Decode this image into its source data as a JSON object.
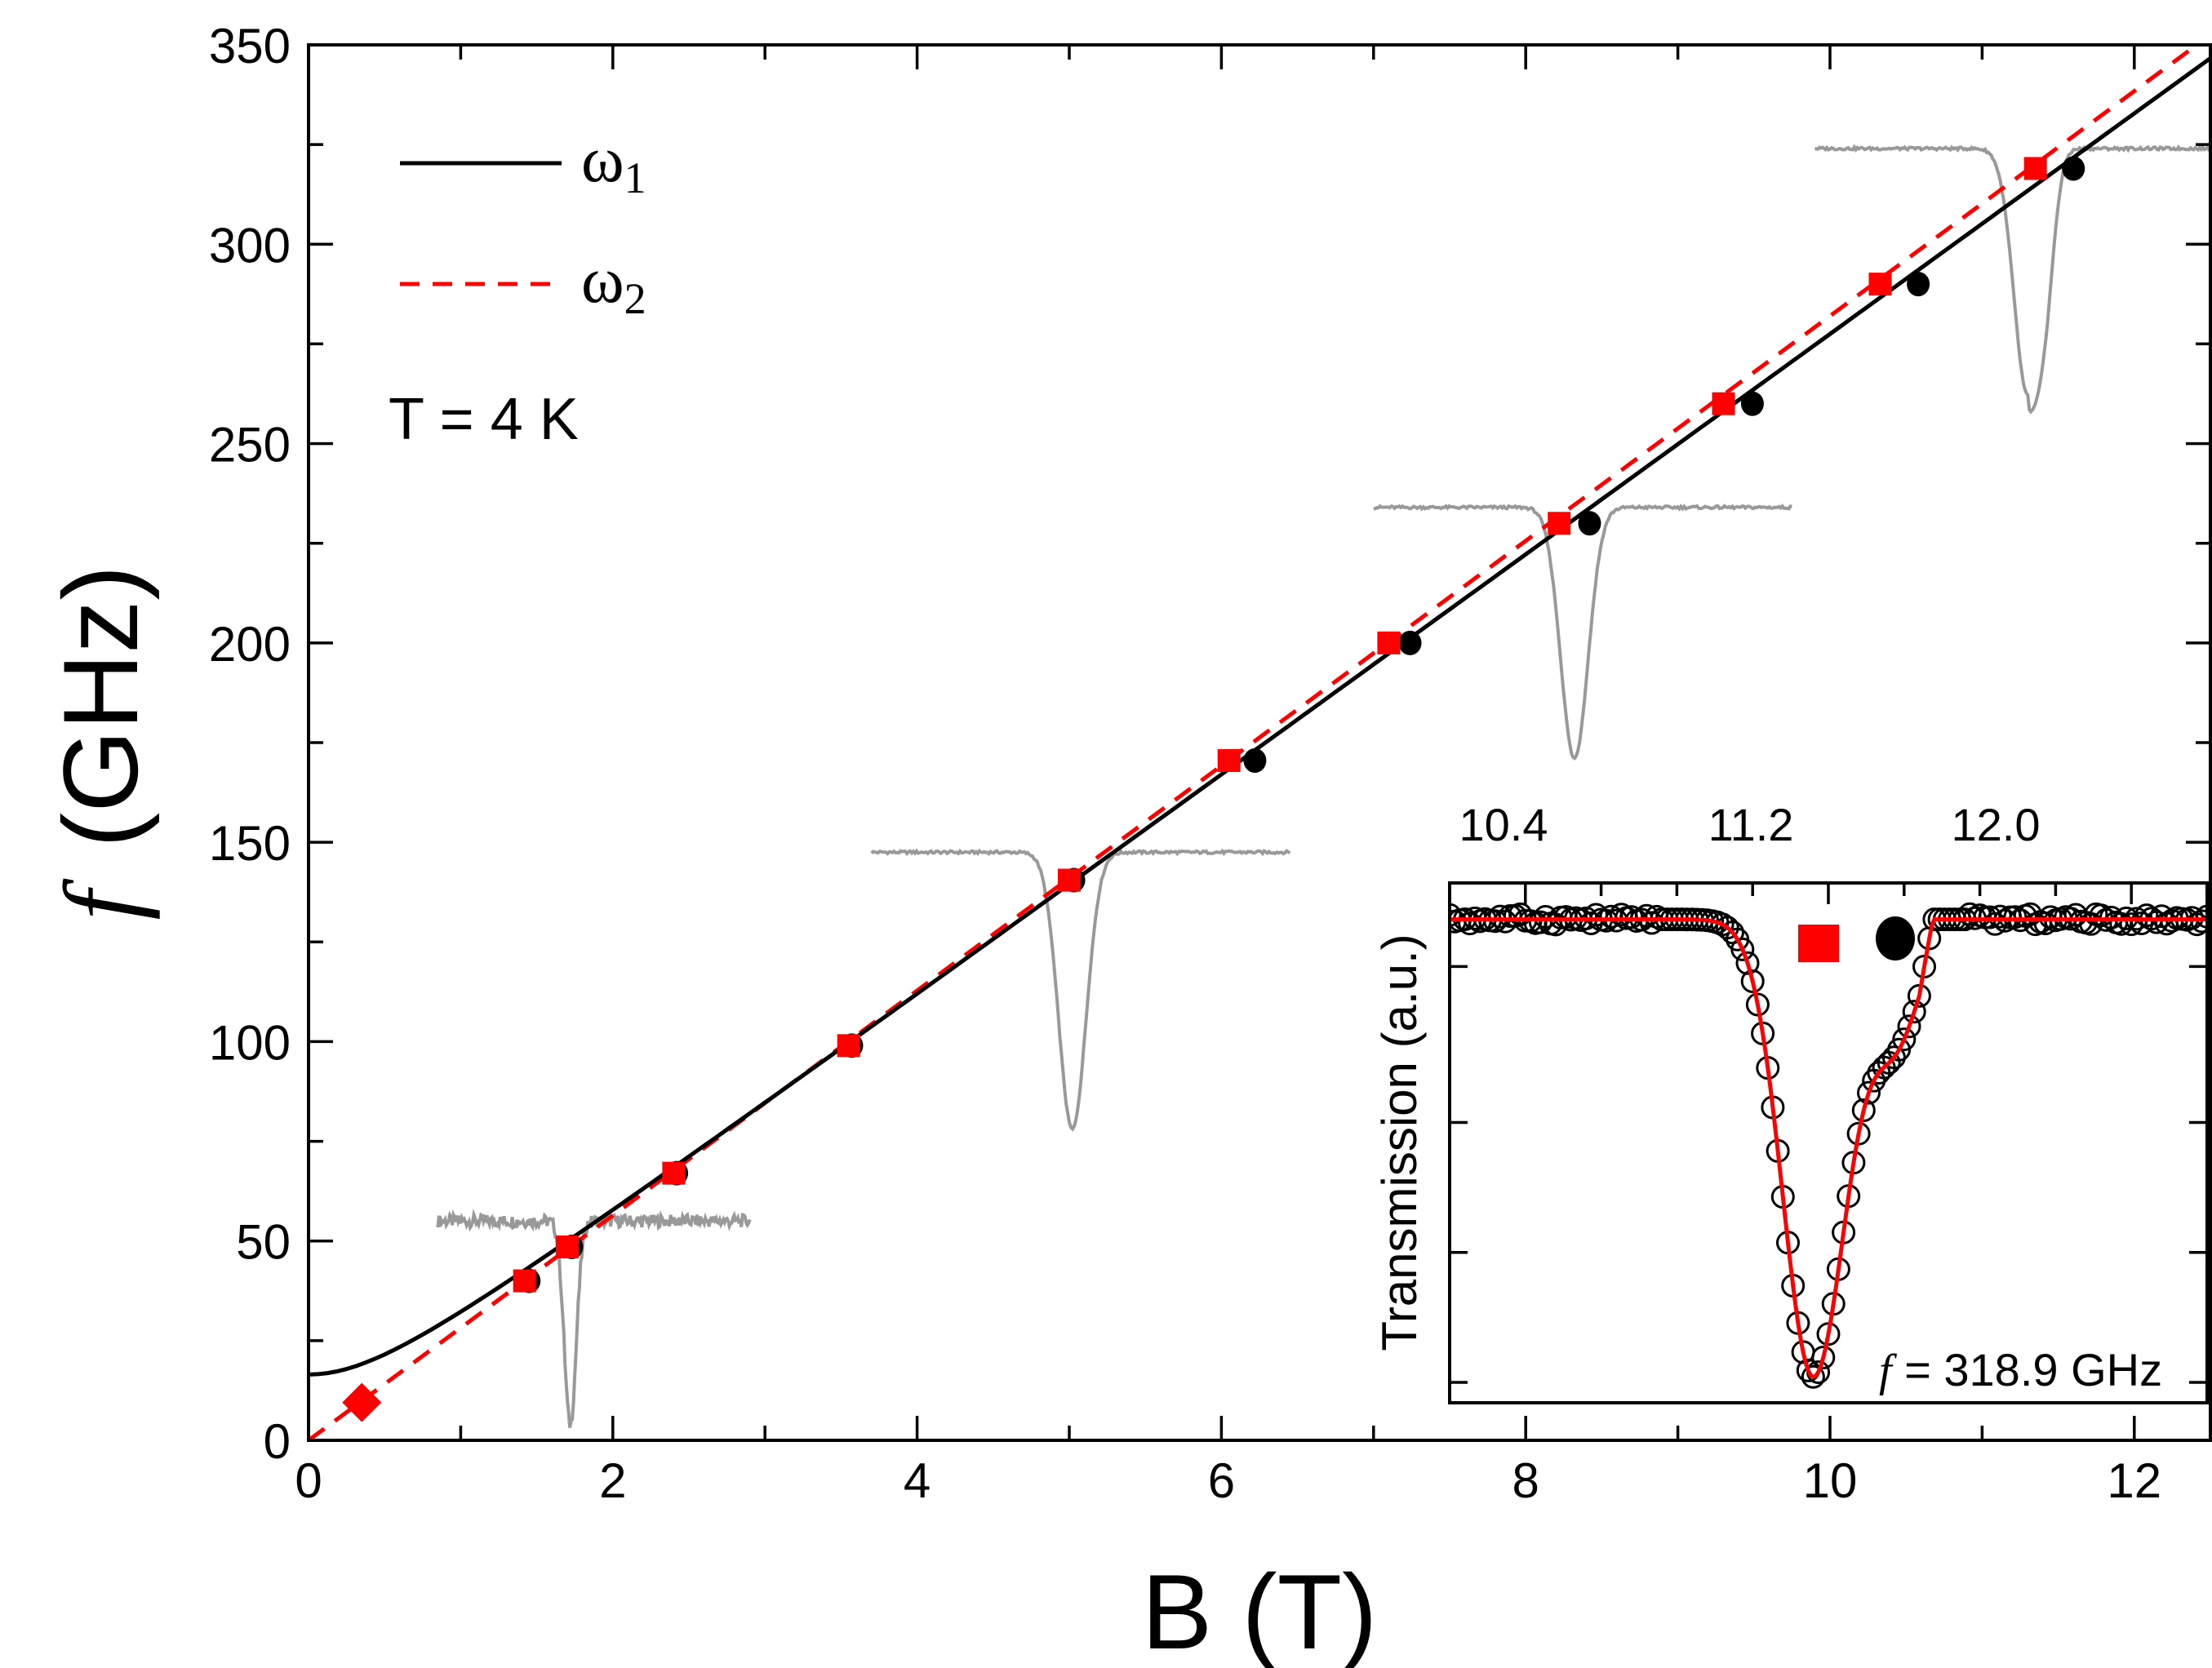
{
  "chart_data": [
    {
      "type": "scatter",
      "xlabel": "B (T)",
      "ylabel_symbol": "f",
      "ylabel_unit": "(GHz)",
      "xlim": [
        0,
        12.5
      ],
      "ylim": [
        0,
        350
      ],
      "xticks": [
        0,
        2,
        4,
        6,
        8,
        10,
        12
      ],
      "yticks": [
        0,
        50,
        100,
        150,
        200,
        250,
        300,
        350
      ],
      "annotation": "T = 4 K",
      "legend_position": "top-left",
      "legend": [
        {
          "symbol": "ω",
          "sub": "1",
          "style": "solid",
          "color": "#000000"
        },
        {
          "symbol": "ω",
          "sub": "2",
          "style": "dashed",
          "color": "#ff0000"
        }
      ],
      "series": [
        {
          "key": "omega1_points",
          "marker": "circle",
          "color": "#000000",
          "x": [
            1.45,
            1.73,
            2.42,
            3.57,
            5.03,
            6.22,
            7.24,
            8.42,
            9.49,
            10.58,
            11.6
          ],
          "y": [
            40,
            48.5,
            67,
            99,
            140.5,
            170.5,
            200,
            230,
            260,
            290,
            319
          ]
        },
        {
          "key": "omega2_points",
          "marker": "square",
          "color": "#ff0000",
          "x": [
            1.42,
            1.7,
            2.4,
            3.55,
            5.0,
            6.05,
            7.1,
            8.22,
            9.3,
            10.33,
            11.35
          ],
          "y": [
            40,
            48.5,
            67,
            99,
            140.5,
            170.5,
            200,
            230,
            260,
            290,
            319
          ]
        },
        {
          "key": "zero_field_point",
          "marker": "diamond",
          "color": "#ff0000",
          "x": [
            0.35
          ],
          "y": [
            9.5
          ]
        }
      ],
      "fit_curves": {
        "omega1": {
          "style": "solid",
          "color": "#000000",
          "y_at_0": 16.5,
          "slope_ghz_per_t": 27.7
        },
        "omega2": {
          "style": "dashed",
          "color": "#ff0000",
          "y_at_0": 0,
          "slope_ghz_per_t": 28.2
        }
      },
      "spectra_traces": [
        {
          "center": [
            1.72,
            4
          ],
          "baseline_y": 55,
          "x_range": [
            0.85,
            2.9
          ],
          "color": "#999999"
        },
        {
          "center": [
            5.02,
            78
          ],
          "baseline_y": 147.5,
          "x_range": [
            3.7,
            6.45
          ],
          "color": "#999999"
        },
        {
          "center": [
            8.32,
            171
          ],
          "baseline_y": 234,
          "x_range": [
            7.0,
            9.75
          ],
          "color": "#999999"
        },
        {
          "center": [
            11.3,
            262
          ],
          "baseline_y": 324,
          "x_range": [
            9.9,
            12.5
          ],
          "color": "#999999"
        }
      ]
    },
    {
      "type": "scatter",
      "ylabel": "Transmission (a.u.)",
      "top_axis_ticks": [
        "10.4",
        "11.2",
        "12.0"
      ],
      "annotation_symbol": "f",
      "annotation_text": " = 318.9 GHz",
      "legend_markers": [
        {
          "marker": "square",
          "color": "#ff0000"
        },
        {
          "marker": "circle",
          "color": "#000000"
        }
      ],
      "data": {
        "marker": "open-circle",
        "color": "#000000",
        "min_at": 9.9,
        "baseline": 0.93,
        "min_value": 0.05
      },
      "fit": {
        "style": "solid",
        "color": "#ff0000"
      }
    }
  ]
}
